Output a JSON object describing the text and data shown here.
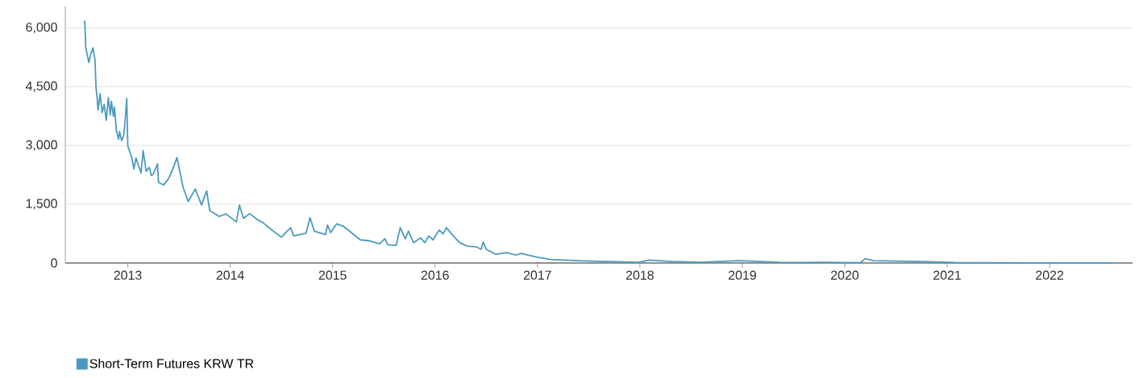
{
  "chart_data": {
    "type": "line",
    "series": [
      {
        "name": "Short-Term Futures KRW TR",
        "color": "#4a9ac0",
        "x": [
          2012.58,
          2012.59,
          2012.62,
          2012.64,
          2012.66,
          2012.68,
          2012.69,
          2012.7,
          2012.71,
          2012.73,
          2012.75,
          2012.77,
          2012.79,
          2012.81,
          2012.83,
          2012.84,
          2012.86,
          2012.87,
          2012.89,
          2012.91,
          2012.92,
          2012.94,
          2012.96,
          2012.97,
          2012.99,
          2013.0,
          2013.04,
          2013.06,
          2013.08,
          2013.13,
          2013.15,
          2013.18,
          2013.21,
          2013.23,
          2013.25,
          2013.29,
          2013.3,
          2013.35,
          2013.4,
          2013.44,
          2013.48,
          2013.54,
          2013.59,
          2013.66,
          2013.72,
          2013.77,
          2013.8,
          2013.89,
          2013.96,
          2014.06,
          2014.09,
          2014.13,
          2014.19,
          2014.27,
          2014.32,
          2014.43,
          2014.5,
          2014.59,
          2014.62,
          2014.74,
          2014.78,
          2014.82,
          2014.93,
          2014.95,
          2014.98,
          2015.04,
          2015.11,
          2015.19,
          2015.27,
          2015.35,
          2015.46,
          2015.51,
          2015.54,
          2015.62,
          2015.66,
          2015.71,
          2015.74,
          2015.79,
          2015.86,
          2015.9,
          2015.94,
          2015.98,
          2016.04,
          2016.08,
          2016.11,
          2016.19,
          2016.24,
          2016.3,
          2016.32,
          2016.4,
          2016.45,
          2016.47,
          2016.5,
          2016.59,
          2016.7,
          2016.79,
          2016.84,
          2017.0,
          2017.13,
          2017.39,
          2017.66,
          2017.99,
          2018.09,
          2018.31,
          2018.58,
          2018.97,
          2019.36,
          2019.61,
          2019.76,
          2020.15,
          2020.2,
          2020.28,
          2020.81,
          2021.07,
          2021.85,
          2022.62
        ],
        "values": [
          6190,
          5490,
          5120,
          5350,
          5490,
          5180,
          4460,
          4250,
          3910,
          4320,
          3840,
          4050,
          3640,
          4220,
          3780,
          4130,
          3740,
          3980,
          3360,
          3160,
          3360,
          3120,
          3260,
          3500,
          4200,
          2990,
          2680,
          2400,
          2680,
          2300,
          2870,
          2340,
          2440,
          2230,
          2270,
          2530,
          2060,
          1990,
          2160,
          2400,
          2690,
          1930,
          1570,
          1890,
          1480,
          1840,
          1340,
          1190,
          1250,
          1050,
          1480,
          1140,
          1260,
          1100,
          1030,
          795,
          660,
          900,
          690,
          760,
          1160,
          815,
          725,
          965,
          775,
          1000,
          930,
          760,
          590,
          570,
          490,
          620,
          465,
          450,
          900,
          620,
          815,
          520,
          640,
          520,
          690,
          590,
          840,
          745,
          900,
          660,
          520,
          450,
          430,
          415,
          350,
          535,
          350,
          225,
          265,
          200,
          245,
          145,
          90,
          60,
          40,
          20,
          75,
          40,
          20,
          60,
          20,
          10,
          20,
          5,
          110,
          60,
          35,
          10,
          3,
          2
        ]
      }
    ],
    "xlim": [
      2012.39,
      2022.81
    ],
    "ylim": [
      0,
      6550
    ],
    "xticks": [
      2013,
      2014,
      2015,
      2016,
      2017,
      2018,
      2019,
      2020,
      2021,
      2022
    ],
    "yticks": [
      0,
      {
        "value": 1500,
        "label": "1,500"
      },
      {
        "value": 3000,
        "label": "3,000"
      },
      {
        "value": 4500,
        "label": "4,500"
      },
      {
        "value": 6000,
        "label": "6,000"
      }
    ],
    "grid": "y",
    "legend": "bottom left"
  }
}
